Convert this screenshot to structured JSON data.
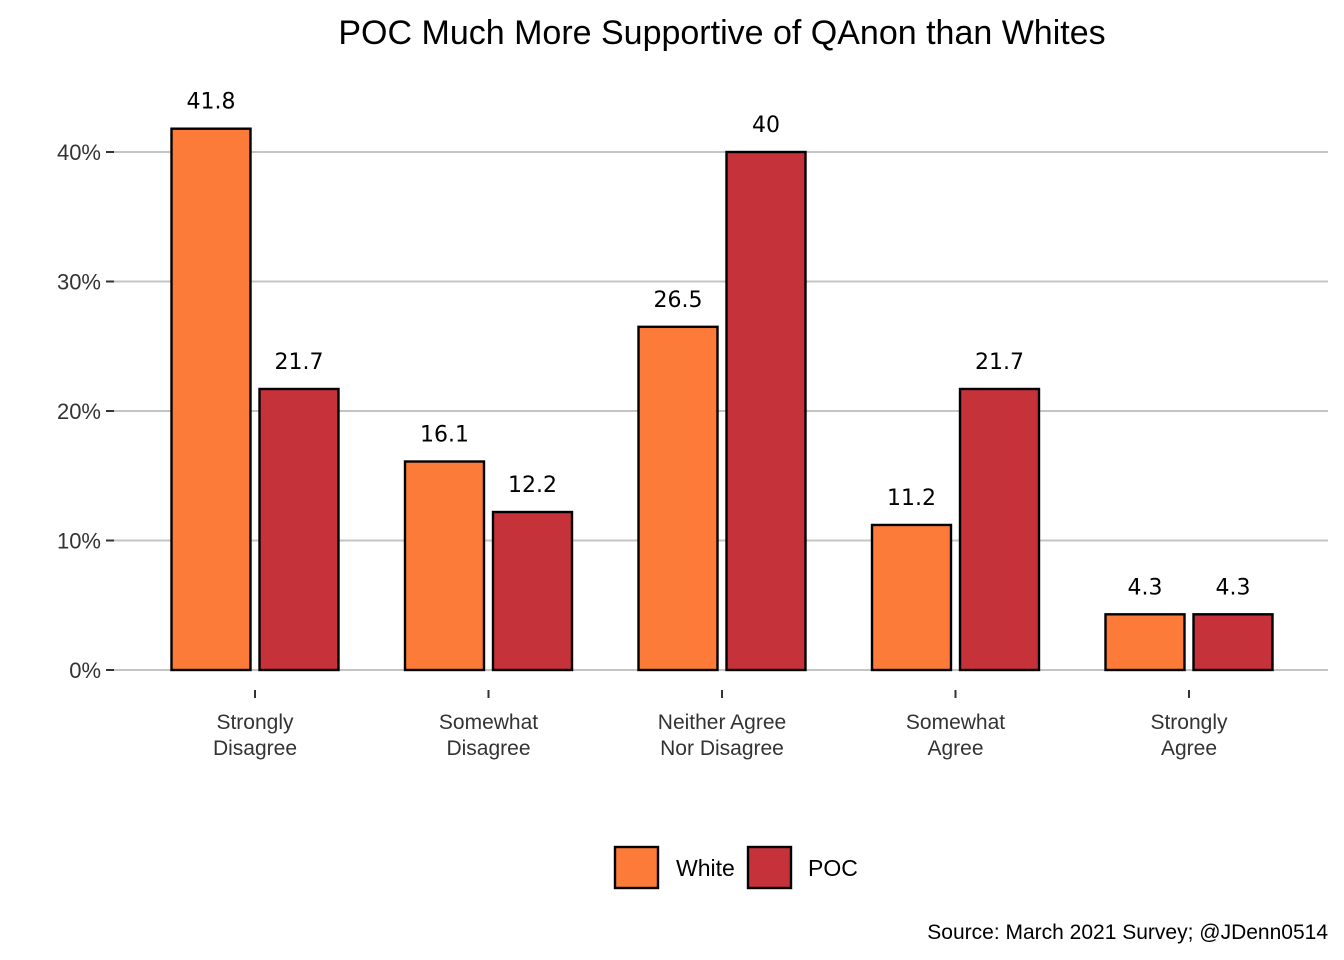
{
  "chart_data": {
    "type": "bar",
    "title": "POC Much More Supportive of QAnon than Whites",
    "categories": [
      [
        "Strongly",
        "Disagree"
      ],
      [
        "Somewhat",
        "Disagree"
      ],
      [
        "Neither Agree",
        "Nor Disagree"
      ],
      [
        "Somewhat",
        "Agree"
      ],
      [
        "Strongly",
        "Agree"
      ]
    ],
    "series": [
      {
        "name": "White",
        "values": [
          41.8,
          16.1,
          26.5,
          11.2,
          4.3
        ],
        "color": "#FD7B38"
      },
      {
        "name": "POC",
        "values": [
          21.7,
          12.2,
          40,
          21.7,
          4.3
        ],
        "color": "#C6323A"
      }
    ],
    "data_labels": [
      [
        "41.8",
        "16.1",
        "26.5",
        "11.2",
        "4.3"
      ],
      [
        "21.7",
        "12.2",
        "40",
        "21.7",
        "4.3"
      ]
    ],
    "yticks": [
      0,
      10,
      20,
      30,
      40
    ],
    "ytick_labels": [
      "0%",
      "10%",
      "20%",
      "30%",
      "40%"
    ],
    "ylim": [
      0,
      45
    ],
    "grid": "horizontal",
    "legend": "bottom",
    "caption": "Source: March 2021 Survey; @JDenn0514"
  }
}
